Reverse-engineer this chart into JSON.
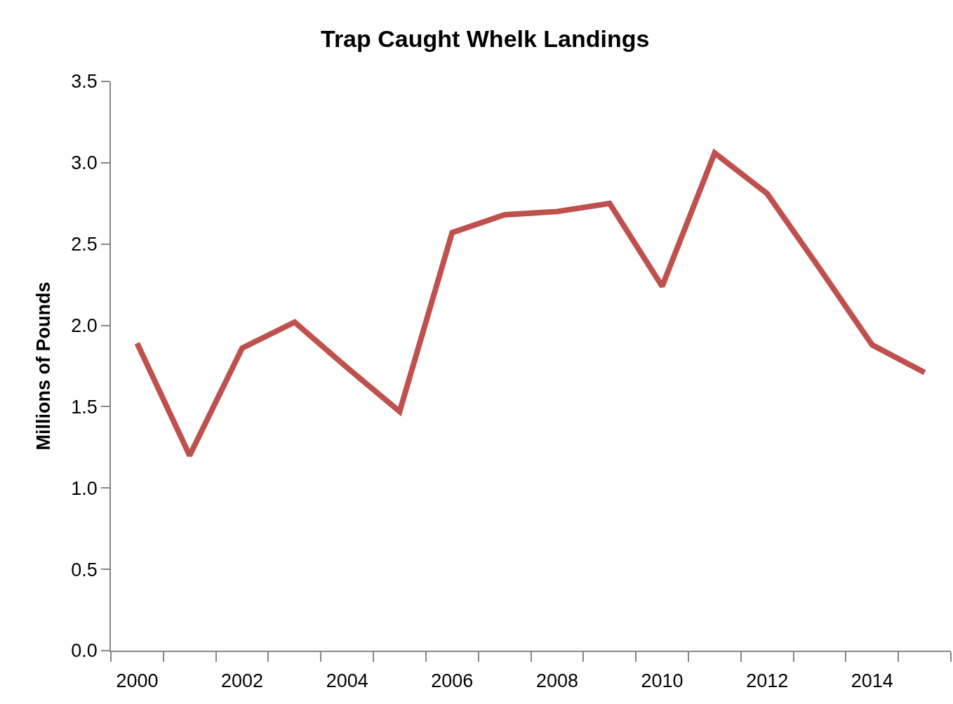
{
  "chart_data": {
    "type": "line",
    "title": "Trap Caught Whelk Landings",
    "ylabel": "Millions of Pounds",
    "categories": [
      "2000",
      null,
      "2002",
      null,
      "2004",
      null,
      "2006",
      null,
      "2008",
      null,
      "2010",
      null,
      "2012",
      null,
      "2014",
      null
    ],
    "series": [
      {
        "color": "#c0504d",
        "values": [
          1.89,
          1.2,
          1.86,
          2.02,
          1.74,
          1.47,
          2.57,
          2.68,
          2.7,
          2.75,
          2.24,
          3.06,
          2.81,
          2.35,
          1.88,
          1.71
        ]
      }
    ],
    "ylim": [
      0,
      3.5
    ],
    "yticks": [
      {
        "value": 0,
        "label": "0.0"
      },
      0.5,
      {
        "value": 1,
        "label": "1.0"
      },
      1.5,
      {
        "value": 2,
        "label": "2.0"
      },
      2.5,
      {
        "value": 3,
        "label": "3.0"
      },
      3.5
    ],
    "line_style": "solid"
  }
}
